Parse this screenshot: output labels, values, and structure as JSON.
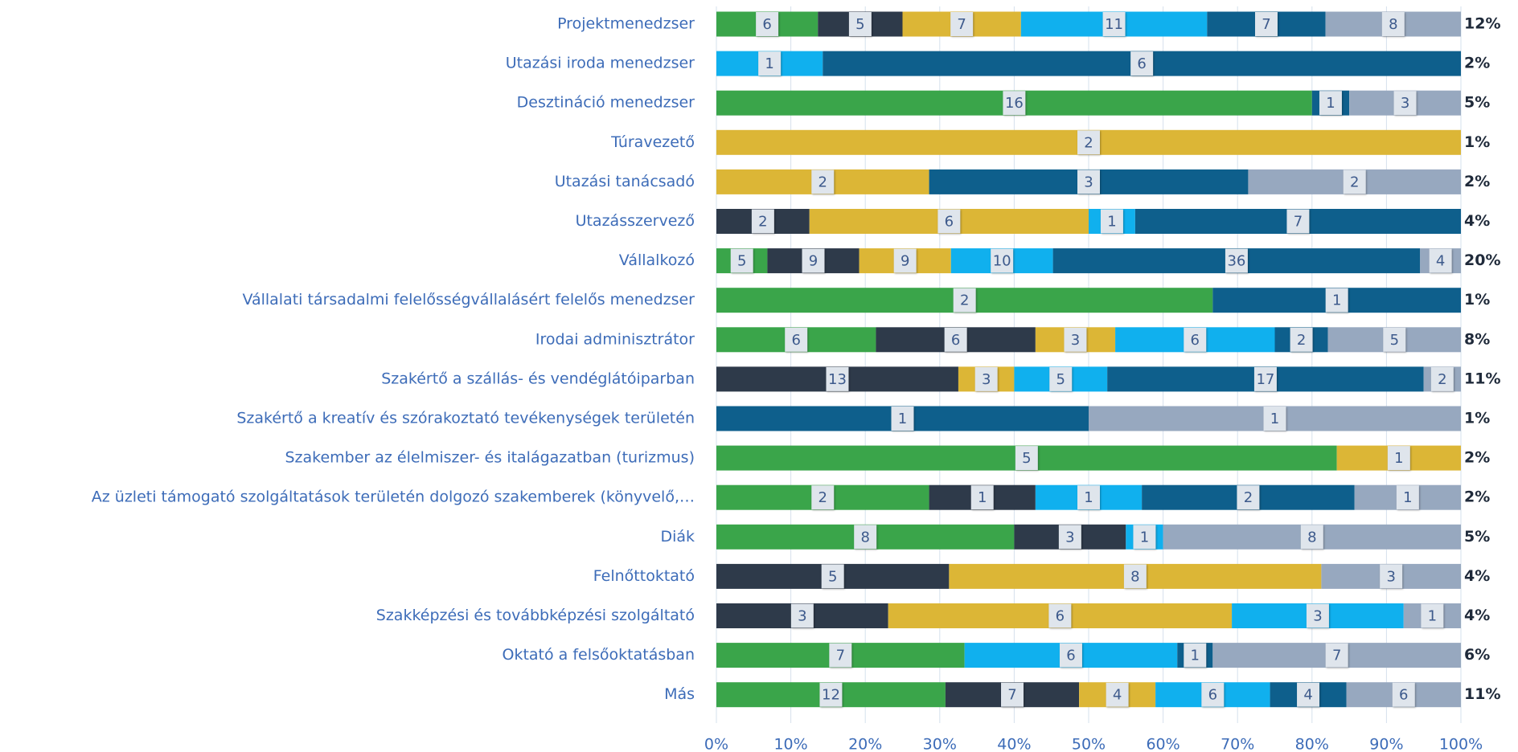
{
  "chart_data": {
    "type": "stacked_bar_100",
    "orientation": "horizontal",
    "categories": [
      "Projektmenedzser",
      "Utazási iroda menedzser",
      "Desztináció menedzser",
      "Túravezető",
      "Utazási tanácsadó",
      "Utazásszervező",
      "Vállalkozó",
      "Vállalati társadalmi felelősségvállalásért felelős menedzser",
      "Irodai adminisztrátor",
      "Szakértő a szállás- és vendéglátóiparban",
      "Szakértő a kreatív és szórakoztató tevékenységek területén",
      "Szakember az élelmiszer- és italágazatban (turizmus)",
      "Az üzleti támogató szolgáltatások területén dolgozó szakemberek (könyvelő,…",
      "Diák",
      "Felnőttoktató",
      "Szakképzési és továbbképzési szolgáltató",
      "Oktató a felsőoktatásban",
      "Más"
    ],
    "series": [
      {
        "color": "#3aa54a",
        "values": [
          6,
          null,
          16,
          null,
          null,
          null,
          5,
          2,
          6,
          null,
          null,
          5,
          2,
          8,
          null,
          null,
          7,
          12
        ]
      },
      {
        "color": "#2e3a4a",
        "values": [
          5,
          null,
          null,
          null,
          null,
          2,
          9,
          null,
          6,
          13,
          null,
          null,
          1,
          3,
          5,
          3,
          null,
          7
        ]
      },
      {
        "color": "#dcb636",
        "values": [
          7,
          null,
          null,
          2,
          2,
          6,
          9,
          null,
          3,
          3,
          null,
          1,
          null,
          null,
          8,
          6,
          null,
          4
        ]
      },
      {
        "color": "#10b0ee",
        "values": [
          11,
          1,
          null,
          null,
          null,
          1,
          10,
          null,
          6,
          5,
          null,
          null,
          1,
          1,
          null,
          3,
          6,
          6
        ]
      },
      {
        "color": "#0e5f8c",
        "values": [
          7,
          6,
          1,
          null,
          3,
          7,
          36,
          1,
          2,
          17,
          1,
          null,
          2,
          null,
          null,
          null,
          1,
          4
        ]
      },
      {
        "color": "#97a8bf",
        "values": [
          8,
          null,
          3,
          null,
          2,
          null,
          4,
          null,
          5,
          2,
          1,
          null,
          1,
          8,
          3,
          1,
          7,
          6
        ]
      }
    ],
    "share_values": [
      12,
      2,
      5,
      1,
      2,
      4,
      20,
      1,
      8,
      11,
      1,
      2,
      2,
      5,
      4,
      4,
      6,
      11
    ],
    "share_labels": [
      "12%",
      "2%",
      "5%",
      "1%",
      "2%",
      "4%",
      "20%",
      "1%",
      "8%",
      "11%",
      "1%",
      "2%",
      "2%",
      "5%",
      "4%",
      "4%",
      "6%",
      "11%"
    ],
    "xlim": [
      0,
      100
    ],
    "xticks": [
      {
        "value": 0,
        "label": "0%"
      },
      {
        "value": 10,
        "label": "10%"
      },
      {
        "value": 20,
        "label": "20%"
      },
      {
        "value": 30,
        "label": "30%"
      },
      {
        "value": 40,
        "label": "40%"
      },
      {
        "value": 50,
        "label": "50%"
      },
      {
        "value": 60,
        "label": "60%"
      },
      {
        "value": 70,
        "label": "70%"
      },
      {
        "value": 80,
        "label": "80%"
      },
      {
        "value": 90,
        "label": "90%"
      },
      {
        "value": 100,
        "label": "100%"
      }
    ],
    "grid": true
  }
}
